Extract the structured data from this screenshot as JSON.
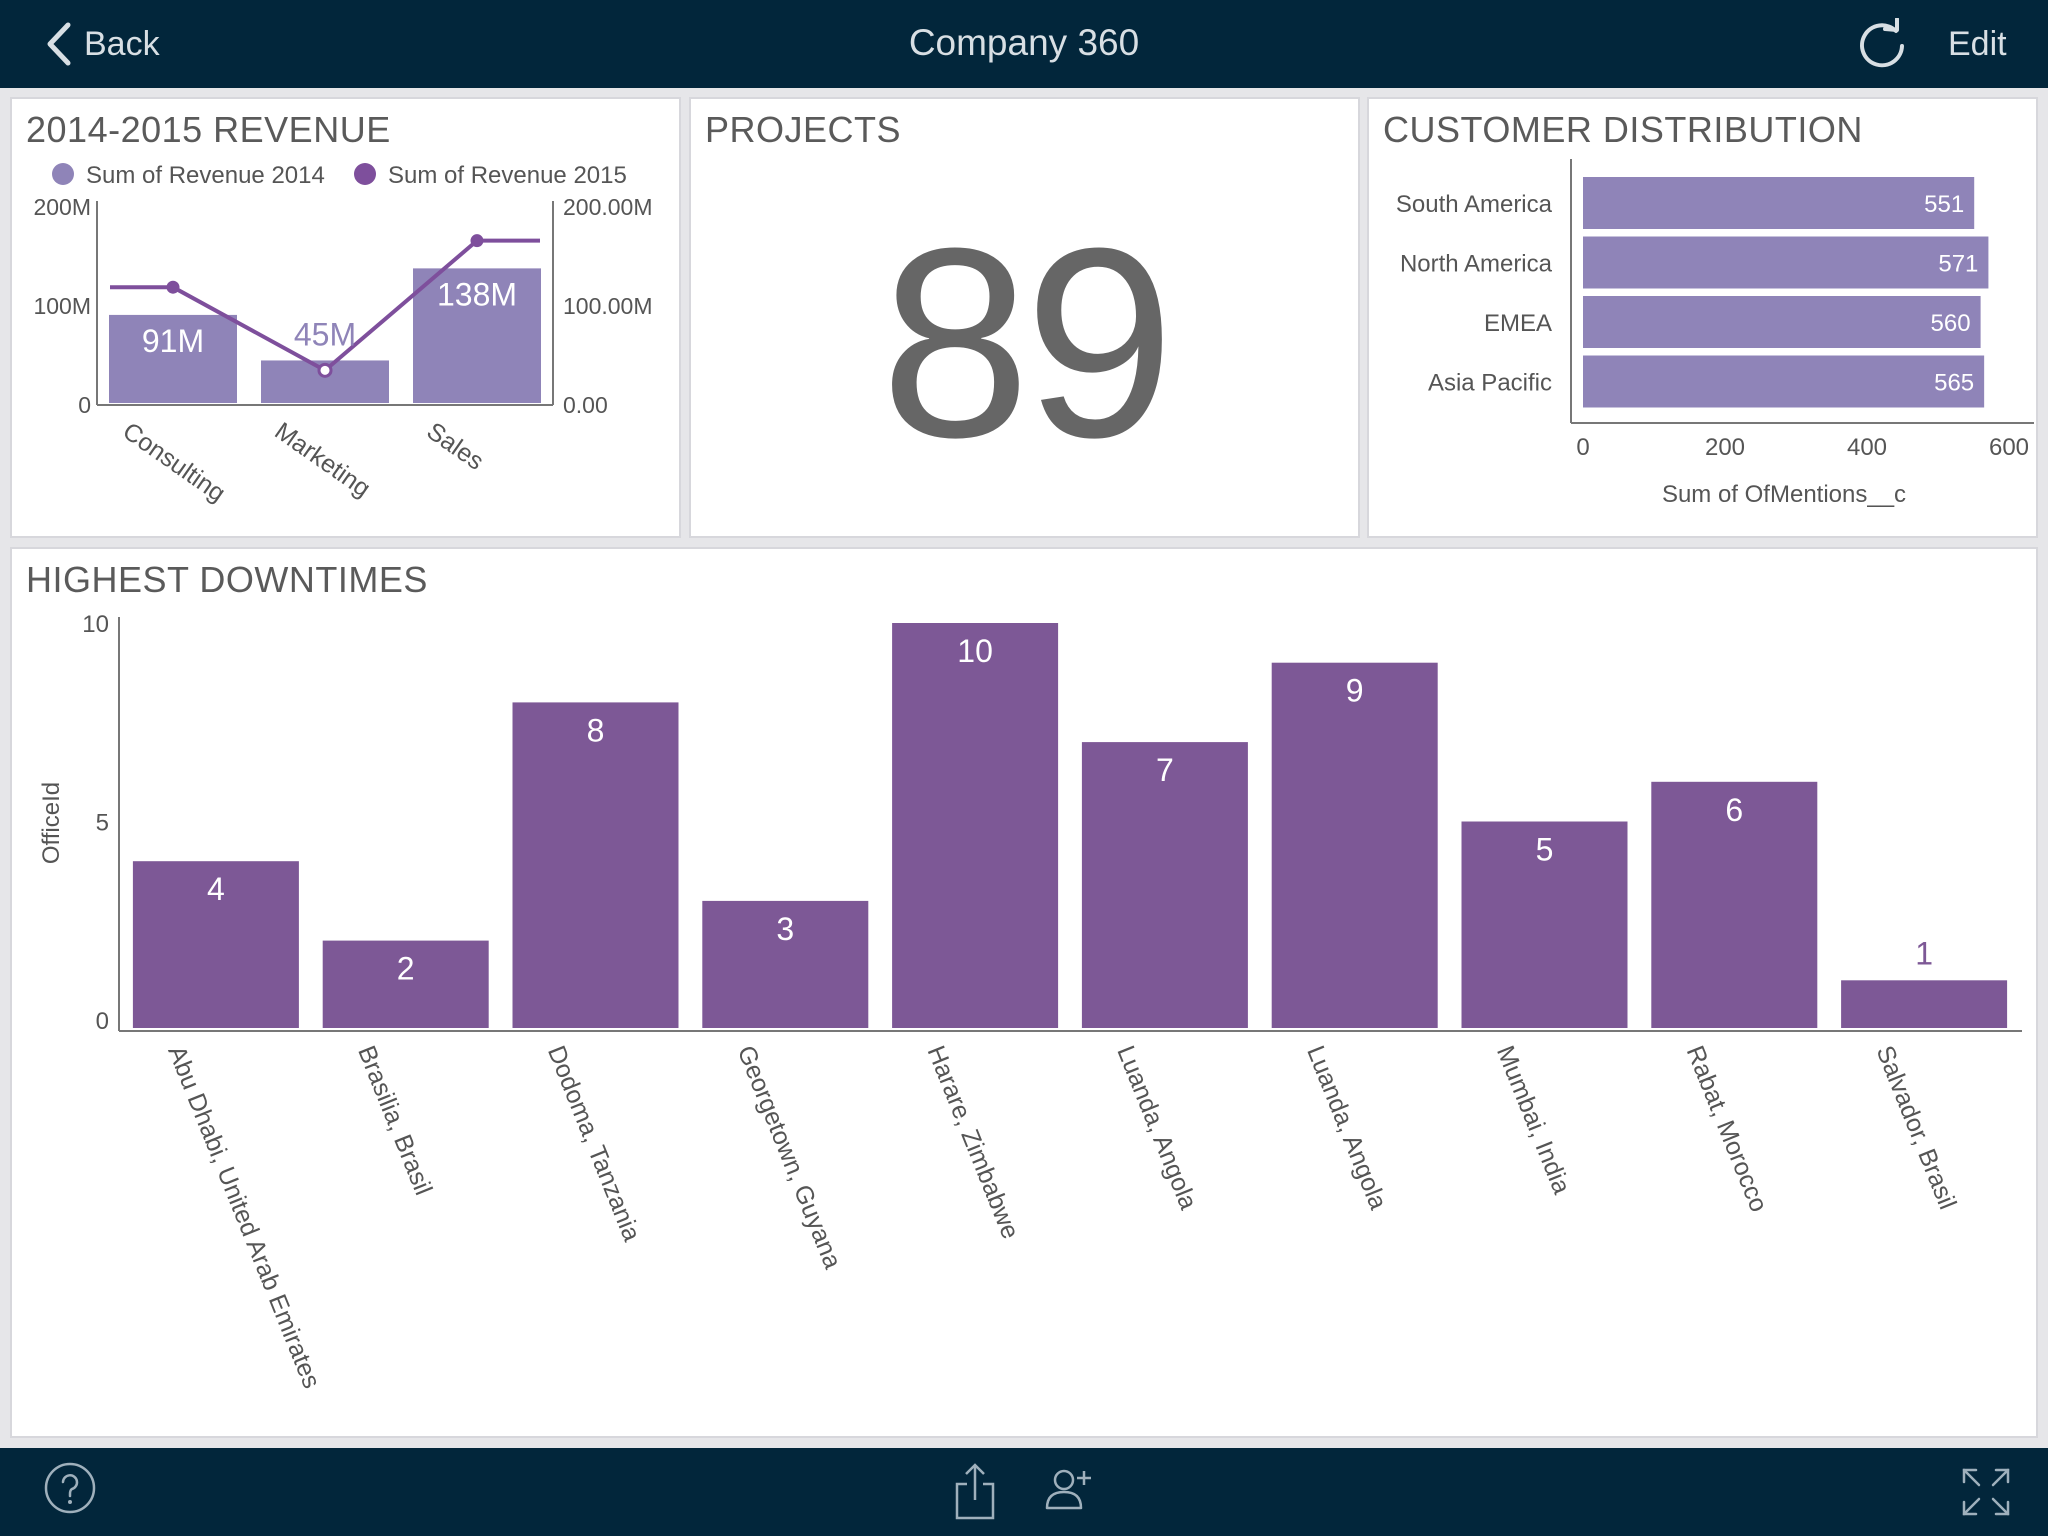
{
  "header": {
    "back_label": "Back",
    "title": "Company 360",
    "edit_label": "Edit"
  },
  "colors": {
    "header_bg": "#02263b",
    "bar_light": "#8f84b8",
    "bar_dark": "#7d5896",
    "line": "#7e4f9c"
  },
  "icons": {
    "back": "chevron-left-icon",
    "refresh": "refresh-icon",
    "help": "question-circle-icon",
    "share": "share-icon",
    "add_user": "add-user-icon",
    "fullscreen": "expand-icon"
  },
  "panels": {
    "revenue": {
      "title": "2014-2015 REVENUE"
    },
    "projects": {
      "title": "PROJECTS",
      "value": "89"
    },
    "customers": {
      "title": "CUSTOMER DISTRIBUTION"
    },
    "downtimes": {
      "title": "HIGHEST DOWNTIMES"
    }
  },
  "chart_data": [
    {
      "id": "revenue",
      "type": "bar",
      "title": "2014-2015 REVENUE",
      "categories": [
        "Consulting",
        "Marketing",
        "Sales"
      ],
      "series": [
        {
          "name": "Sum of Revenue 2014",
          "kind": "bar",
          "values": [
            91,
            45,
            138
          ],
          "labels": [
            "91M",
            "45M",
            "138M"
          ],
          "color": "#8f84b8"
        },
        {
          "name": "Sum of Revenue 2015",
          "kind": "line",
          "axis": "right",
          "values": [
            119,
            35,
            166
          ],
          "color": "#7e4f9c"
        }
      ],
      "y_left": {
        "ticks": [
          "0",
          "100M",
          "200M"
        ],
        "range": [
          0,
          200
        ]
      },
      "y_right": {
        "ticks": [
          "0.00",
          "100.00M",
          "200.00M"
        ],
        "range": [
          0,
          200
        ]
      },
      "legend": "top"
    },
    {
      "id": "customers",
      "type": "bar",
      "orientation": "horizontal",
      "title": "CUSTOMER DISTRIBUTION",
      "categories": [
        "South America",
        "North America",
        "EMEA",
        "Asia Pacific"
      ],
      "values": [
        551,
        571,
        560,
        565
      ],
      "xlabel": "Sum of OfMentions__c",
      "xlim": [
        0,
        600
      ],
      "xticks": [
        "0",
        "200",
        "400",
        "600"
      ],
      "color": "#8f84b8"
    },
    {
      "id": "downtimes",
      "type": "bar",
      "title": "HIGHEST DOWNTIMES",
      "categories": [
        "Abu Dhabi, United Arab Emirates",
        "Brasilia, Brasil",
        "Dodoma, Tanzania",
        "Georgetown, Guyana",
        "Harare, Zimbabwe",
        "Luanda, Angola",
        "Luanda, Angola",
        "Mumbai, India",
        "Rabat, Morocco",
        "Salvador, Brasil"
      ],
      "values": [
        4,
        2,
        8,
        3,
        10,
        7,
        9,
        5,
        6,
        1
      ],
      "ylabel": "OfficeId",
      "ylim": [
        0,
        10
      ],
      "yticks": [
        "0",
        "5",
        "10"
      ],
      "color": "#7d5896"
    }
  ]
}
